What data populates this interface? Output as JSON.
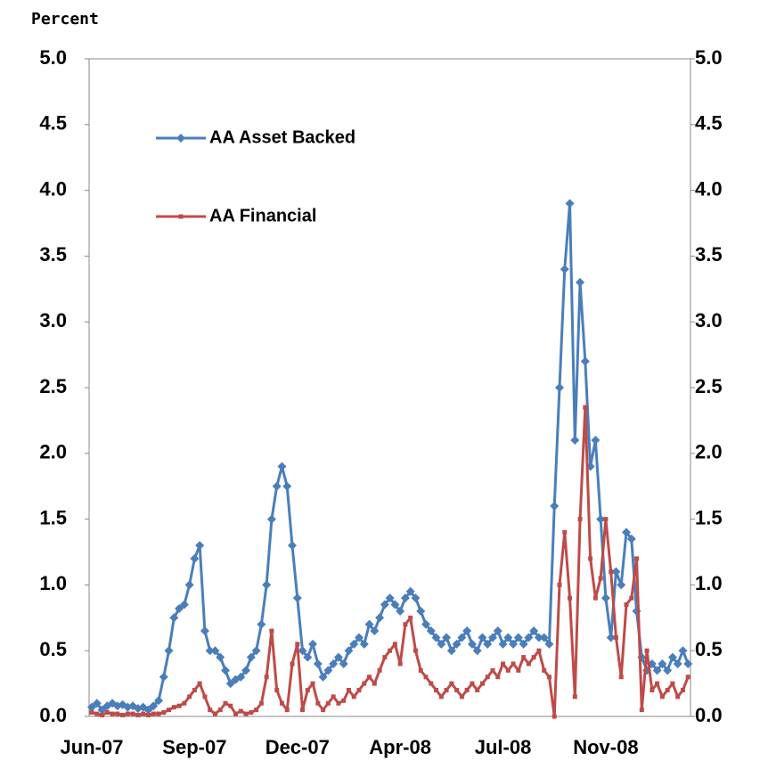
{
  "chart_data": {
    "type": "line",
    "y_axis_label": "Percent",
    "categories": [
      "Jun-07",
      null,
      null,
      null,
      null,
      null,
      null,
      null,
      null,
      null,
      null,
      null,
      null,
      null,
      null,
      null,
      null,
      null,
      null,
      null,
      "Sep-07",
      null,
      null,
      null,
      null,
      null,
      null,
      null,
      null,
      null,
      null,
      null,
      null,
      null,
      null,
      null,
      null,
      null,
      null,
      null,
      "Dec-07",
      null,
      null,
      null,
      null,
      null,
      null,
      null,
      null,
      null,
      null,
      null,
      null,
      null,
      null,
      null,
      null,
      null,
      null,
      null,
      "Apr-08",
      null,
      null,
      null,
      null,
      null,
      null,
      null,
      null,
      null,
      null,
      null,
      null,
      null,
      null,
      null,
      null,
      null,
      null,
      null,
      "Jul-08",
      null,
      null,
      null,
      null,
      null,
      null,
      null,
      null,
      null,
      null,
      null,
      null,
      null,
      null,
      null,
      null,
      null,
      null,
      null,
      "Nov-08",
      null,
      null,
      null,
      null,
      null,
      null,
      null,
      null,
      null,
      null,
      null,
      null,
      null,
      null,
      null,
      null
    ],
    "series": [
      {
        "name": "AA Asset Backed",
        "color": "#4a7ebb",
        "marker": "diamond",
        "values": [
          0.07,
          0.1,
          0.05,
          0.08,
          0.1,
          0.08,
          0.09,
          0.07,
          0.08,
          0.06,
          0.07,
          0.05,
          0.08,
          0.12,
          0.3,
          0.5,
          0.75,
          0.82,
          0.85,
          1.0,
          1.2,
          1.3,
          0.65,
          0.5,
          0.5,
          0.45,
          0.35,
          0.25,
          0.28,
          0.3,
          0.35,
          0.45,
          0.5,
          0.7,
          1.0,
          1.5,
          1.75,
          1.9,
          1.75,
          1.3,
          0.9,
          0.5,
          0.45,
          0.55,
          0.4,
          0.3,
          0.35,
          0.4,
          0.45,
          0.4,
          0.5,
          0.55,
          0.6,
          0.55,
          0.7,
          0.65,
          0.75,
          0.85,
          0.9,
          0.85,
          0.8,
          0.9,
          0.95,
          0.9,
          0.8,
          0.7,
          0.65,
          0.6,
          0.55,
          0.6,
          0.5,
          0.55,
          0.6,
          0.65,
          0.55,
          0.5,
          0.6,
          0.55,
          0.6,
          0.65,
          0.55,
          0.6,
          0.55,
          0.6,
          0.55,
          0.6,
          0.65,
          0.6,
          0.6,
          0.55,
          1.6,
          2.5,
          3.4,
          3.9,
          2.1,
          3.3,
          2.7,
          1.9,
          2.1,
          1.5,
          0.9,
          0.6,
          1.1,
          1.0,
          1.4,
          1.35,
          0.8,
          0.45,
          0.35,
          0.4,
          0.35,
          0.4,
          0.35,
          0.45,
          0.4,
          0.5,
          0.4
        ]
      },
      {
        "name": "AA Financial",
        "color": "#be4b48",
        "marker": "square",
        "values": [
          0.03,
          0.02,
          0.01,
          0.03,
          0.02,
          0.02,
          0.01,
          0.02,
          0.02,
          0.01,
          0.02,
          0.01,
          0.02,
          0.02,
          0.03,
          0.05,
          0.07,
          0.08,
          0.1,
          0.15,
          0.2,
          0.25,
          0.15,
          0.05,
          0.02,
          0.05,
          0.1,
          0.08,
          0.02,
          0.04,
          0.02,
          0.03,
          0.05,
          0.1,
          0.3,
          0.65,
          0.2,
          0.1,
          0.05,
          0.4,
          0.55,
          0.05,
          0.2,
          0.25,
          0.1,
          0.05,
          0.1,
          0.15,
          0.1,
          0.12,
          0.2,
          0.15,
          0.2,
          0.25,
          0.3,
          0.25,
          0.35,
          0.45,
          0.5,
          0.55,
          0.4,
          0.7,
          0.75,
          0.5,
          0.35,
          0.3,
          0.25,
          0.2,
          0.15,
          0.2,
          0.25,
          0.2,
          0.15,
          0.2,
          0.25,
          0.2,
          0.25,
          0.3,
          0.35,
          0.3,
          0.4,
          0.35,
          0.4,
          0.35,
          0.45,
          0.4,
          0.45,
          0.5,
          0.35,
          0.3,
          0,
          1.0,
          1.4,
          0.9,
          0.15,
          1.5,
          2.35,
          1.2,
          0.9,
          1.05,
          1.5,
          1.1,
          0.6,
          0.3,
          0.85,
          0.9,
          1.2,
          0.05,
          0.5,
          0.2,
          0.25,
          0.15,
          0.2,
          0.25,
          0.15,
          0.2,
          0.3
        ]
      }
    ],
    "ylim": [
      0,
      5
    ],
    "yticks": [
      {
        "value": 0,
        "label": "0.0"
      },
      0.5,
      {
        "value": 1,
        "label": "1.0"
      },
      1.5,
      {
        "value": 2,
        "label": "2.0"
      },
      2.5,
      {
        "value": 3,
        "label": "3.0"
      },
      3.5,
      {
        "value": 4,
        "label": "4.0"
      },
      4.5,
      {
        "value": 5,
        "label": "5.0"
      }
    ],
    "legend": "upper left",
    "grid": false
  }
}
